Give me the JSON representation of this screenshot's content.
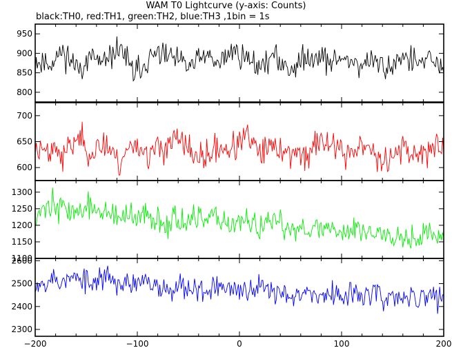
{
  "chart_data": {
    "type": "line",
    "title": "WAM T0 Lightcurve (y-axis: Counts)",
    "subtitle": "black:TH0, red:TH1, green:TH2, blue:TH3 ,1bin = 1s",
    "xlabel": "",
    "xlim": [
      -200,
      200
    ],
    "x_ticks": [
      -200,
      -100,
      0,
      100,
      200
    ],
    "x_tick_labels": [
      "−200",
      "−100",
      "0",
      "100",
      "200"
    ],
    "grid": false,
    "panels": [
      {
        "series_name": "TH0",
        "color": "#000000",
        "ylim": [
          775,
          975
        ],
        "y_ticks": [
          800,
          850,
          900,
          950
        ],
        "mean_start": 885,
        "mean_end": 872,
        "noise": 26,
        "seed": 11,
        "values": [
          880,
          875,
          905,
          860,
          890,
          870,
          920,
          845,
          885,
          900,
          880,
          865,
          895,
          870,
          910,
          885,
          870,
          890,
          860,
          880,
          900,
          875,
          890,
          870,
          880,
          860,
          895,
          875,
          880,
          865
        ]
      },
      {
        "series_name": "TH1",
        "color": "#ff0000",
        "ylim": [
          575,
          725
        ],
        "y_ticks": [
          600,
          650,
          700
        ],
        "mean_start": 636,
        "mean_end": 630,
        "noise": 22,
        "seed": 23,
        "values": [
          635,
          640,
          620,
          660,
          630,
          645,
          610,
          650,
          625,
          640,
          655,
          630,
          615,
          640,
          635,
          660,
          625,
          640,
          630,
          620,
          645,
          650,
          625,
          640,
          630,
          615,
          640,
          625,
          635,
          630
        ]
      },
      {
        "series_name": "TH2",
        "color": "#00ee00",
        "ylim": [
          1100,
          1335
        ],
        "y_ticks": [
          1100,
          1150,
          1200,
          1250,
          1300
        ],
        "mean_start": 1245,
        "mean_end": 1170,
        "noise": 32,
        "seed": 37,
        "values": [
          1230,
          1265,
          1250,
          1240,
          1255,
          1235,
          1225,
          1215,
          1230,
          1210,
          1220,
          1205,
          1215,
          1225,
          1200,
          1210,
          1195,
          1205,
          1190,
          1200,
          1185,
          1195,
          1180,
          1190,
          1175,
          1180,
          1170,
          1165,
          1175,
          1160
        ]
      },
      {
        "series_name": "TH3",
        "color": "#0000ff",
        "ylim": [
          2270,
          2610
        ],
        "y_ticks": [
          2300,
          2400,
          2500,
          2600
        ],
        "mean_start": 2510,
        "mean_end": 2440,
        "noise": 42,
        "seed": 53,
        "values": [
          2505,
          2520,
          2510,
          2525,
          2495,
          2540,
          2500,
          2490,
          2505,
          2480,
          2495,
          2485,
          2470,
          2490,
          2475,
          2460,
          2480,
          2465,
          2455,
          2470,
          2450,
          2440,
          2460,
          2445,
          2455,
          2435,
          2440,
          2430,
          2445,
          2450
        ]
      }
    ]
  }
}
